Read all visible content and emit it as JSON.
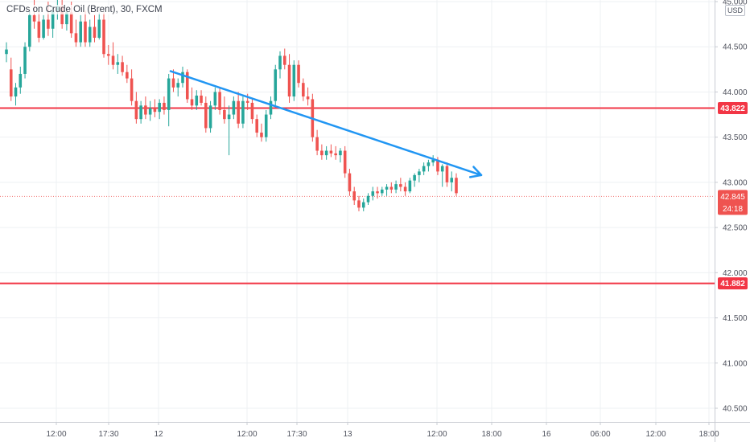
{
  "chart_header": {
    "symbol_title": "CFDs on Crude Oil (Brent), 30, FXCM",
    "currency": "USD"
  },
  "chart_data": {
    "type": "candlestick",
    "y_axis": {
      "min": 40.4,
      "max": 45.0,
      "tick_labels": [
        "45.000",
        "44.500",
        "44.000",
        "43.500",
        "43.000",
        "42.500",
        "42.000",
        "41.500",
        "41.000",
        "40.500"
      ]
    },
    "x_axis": {
      "tick_labels": [
        "12:00",
        "17:30",
        "12",
        "12:00",
        "17:30",
        "13",
        "12:00",
        "18:00",
        "16",
        "06:00",
        "12:00",
        "18:00"
      ]
    },
    "horizontal_levels": [
      {
        "price": 43.822,
        "label": "43.822",
        "color": "#f23645"
      },
      {
        "price": 41.882,
        "label": "41.882",
        "color": "#f23645"
      }
    ],
    "last_price": {
      "price": 42.845,
      "label": "42.845",
      "countdown": "24:18",
      "color": "#ef5350"
    },
    "trend_line": {
      "start_price": 44.23,
      "end_price": 43.08,
      "color": "#2196f3",
      "has_arrow": true
    },
    "candles": [
      {
        "o": 44.42,
        "h": 44.55,
        "l": 44.33,
        "c": 44.47
      },
      {
        "o": 44.25,
        "h": 44.38,
        "l": 43.9,
        "c": 43.95
      },
      {
        "o": 43.95,
        "h": 44.1,
        "l": 43.85,
        "c": 44.05
      },
      {
        "o": 44.05,
        "h": 44.28,
        "l": 43.98,
        "c": 44.2
      },
      {
        "o": 44.2,
        "h": 44.55,
        "l": 44.15,
        "c": 44.5
      },
      {
        "o": 44.5,
        "h": 44.9,
        "l": 44.45,
        "c": 44.85
      },
      {
        "o": 44.85,
        "h": 45.05,
        "l": 44.7,
        "c": 44.78
      },
      {
        "o": 44.78,
        "h": 44.9,
        "l": 44.55,
        "c": 44.6
      },
      {
        "o": 44.6,
        "h": 44.85,
        "l": 44.58,
        "c": 44.8
      },
      {
        "o": 44.8,
        "h": 45.0,
        "l": 44.62,
        "c": 44.7
      },
      {
        "o": 44.7,
        "h": 44.95,
        "l": 44.6,
        "c": 44.9
      },
      {
        "o": 44.9,
        "h": 45.02,
        "l": 44.8,
        "c": 44.95
      },
      {
        "o": 44.95,
        "h": 45.05,
        "l": 44.7,
        "c": 44.75
      },
      {
        "o": 44.75,
        "h": 44.92,
        "l": 44.68,
        "c": 44.88
      },
      {
        "o": 44.88,
        "h": 45.0,
        "l": 44.6,
        "c": 44.65
      },
      {
        "o": 44.65,
        "h": 44.8,
        "l": 44.5,
        "c": 44.55
      },
      {
        "o": 44.55,
        "h": 44.85,
        "l": 44.5,
        "c": 44.78
      },
      {
        "o": 44.78,
        "h": 44.9,
        "l": 44.5,
        "c": 44.55
      },
      {
        "o": 44.55,
        "h": 44.8,
        "l": 44.5,
        "c": 44.72
      },
      {
        "o": 44.72,
        "h": 44.85,
        "l": 44.55,
        "c": 44.6
      },
      {
        "o": 44.6,
        "h": 44.88,
        "l": 44.58,
        "c": 44.8
      },
      {
        "o": 44.8,
        "h": 44.88,
        "l": 44.38,
        "c": 44.42
      },
      {
        "o": 44.42,
        "h": 44.52,
        "l": 44.3,
        "c": 44.4
      },
      {
        "o": 44.4,
        "h": 44.55,
        "l": 44.25,
        "c": 44.3
      },
      {
        "o": 44.3,
        "h": 44.42,
        "l": 44.2,
        "c": 44.33
      },
      {
        "o": 44.33,
        "h": 44.4,
        "l": 44.18,
        "c": 44.22
      },
      {
        "o": 44.22,
        "h": 44.3,
        "l": 44.1,
        "c": 44.15
      },
      {
        "o": 44.15,
        "h": 44.25,
        "l": 43.85,
        "c": 43.9
      },
      {
        "o": 43.9,
        "h": 44.0,
        "l": 43.65,
        "c": 43.7
      },
      {
        "o": 43.7,
        "h": 43.9,
        "l": 43.65,
        "c": 43.85
      },
      {
        "o": 43.85,
        "h": 43.95,
        "l": 43.7,
        "c": 43.75
      },
      {
        "o": 43.75,
        "h": 43.9,
        "l": 43.68,
        "c": 43.82
      },
      {
        "o": 43.82,
        "h": 43.92,
        "l": 43.72,
        "c": 43.78
      },
      {
        "o": 43.78,
        "h": 43.92,
        "l": 43.7,
        "c": 43.88
      },
      {
        "o": 43.88,
        "h": 43.95,
        "l": 43.75,
        "c": 43.8
      },
      {
        "o": 43.8,
        "h": 44.2,
        "l": 43.62,
        "c": 44.15
      },
      {
        "o": 44.15,
        "h": 44.25,
        "l": 44.0,
        "c": 44.05
      },
      {
        "o": 44.05,
        "h": 44.15,
        "l": 43.95,
        "c": 44.1
      },
      {
        "o": 44.1,
        "h": 44.28,
        "l": 44.05,
        "c": 44.22
      },
      {
        "o": 44.22,
        "h": 44.25,
        "l": 43.88,
        "c": 43.92
      },
      {
        "o": 43.92,
        "h": 44.05,
        "l": 43.8,
        "c": 43.85
      },
      {
        "o": 43.85,
        "h": 44.02,
        "l": 43.8,
        "c": 43.96
      },
      {
        "o": 43.96,
        "h": 44.02,
        "l": 43.85,
        "c": 43.88
      },
      {
        "o": 43.88,
        "h": 43.95,
        "l": 43.55,
        "c": 43.6
      },
      {
        "o": 43.6,
        "h": 43.9,
        "l": 43.55,
        "c": 43.85
      },
      {
        "o": 43.85,
        "h": 44.05,
        "l": 43.8,
        "c": 44.0
      },
      {
        "o": 44.0,
        "h": 44.05,
        "l": 43.75,
        "c": 43.8
      },
      {
        "o": 43.8,
        "h": 43.95,
        "l": 43.65,
        "c": 43.7
      },
      {
        "o": 43.7,
        "h": 43.85,
        "l": 43.3,
        "c": 43.75
      },
      {
        "o": 43.75,
        "h": 43.95,
        "l": 43.7,
        "c": 43.9
      },
      {
        "o": 43.9,
        "h": 44.0,
        "l": 43.6,
        "c": 43.65
      },
      {
        "o": 43.65,
        "h": 43.95,
        "l": 43.6,
        "c": 43.9
      },
      {
        "o": 43.9,
        "h": 43.98,
        "l": 43.8,
        "c": 43.88
      },
      {
        "o": 43.88,
        "h": 43.92,
        "l": 43.65,
        "c": 43.7
      },
      {
        "o": 43.7,
        "h": 43.75,
        "l": 43.5,
        "c": 43.55
      },
      {
        "o": 43.55,
        "h": 43.65,
        "l": 43.45,
        "c": 43.5
      },
      {
        "o": 43.5,
        "h": 43.8,
        "l": 43.45,
        "c": 43.75
      },
      {
        "o": 43.75,
        "h": 43.95,
        "l": 43.7,
        "c": 43.9
      },
      {
        "o": 43.9,
        "h": 44.3,
        "l": 43.85,
        "c": 44.25
      },
      {
        "o": 44.25,
        "h": 44.45,
        "l": 44.15,
        "c": 44.4
      },
      {
        "o": 44.4,
        "h": 44.48,
        "l": 44.25,
        "c": 44.3
      },
      {
        "o": 44.3,
        "h": 44.42,
        "l": 43.88,
        "c": 43.95
      },
      {
        "o": 43.95,
        "h": 44.35,
        "l": 43.9,
        "c": 44.3
      },
      {
        "o": 44.3,
        "h": 44.35,
        "l": 44.05,
        "c": 44.1
      },
      {
        "o": 44.1,
        "h": 44.15,
        "l": 43.9,
        "c": 43.95
      },
      {
        "o": 43.95,
        "h": 44.05,
        "l": 43.85,
        "c": 43.92
      },
      {
        "o": 43.92,
        "h": 43.98,
        "l": 43.45,
        "c": 43.5
      },
      {
        "o": 43.5,
        "h": 43.58,
        "l": 43.3,
        "c": 43.35
      },
      {
        "o": 43.35,
        "h": 43.42,
        "l": 43.25,
        "c": 43.3
      },
      {
        "o": 43.3,
        "h": 43.4,
        "l": 43.25,
        "c": 43.35
      },
      {
        "o": 43.35,
        "h": 43.42,
        "l": 43.28,
        "c": 43.32
      },
      {
        "o": 43.32,
        "h": 43.4,
        "l": 43.25,
        "c": 43.3
      },
      {
        "o": 43.3,
        "h": 43.38,
        "l": 43.22,
        "c": 43.35
      },
      {
        "o": 43.35,
        "h": 43.4,
        "l": 43.05,
        "c": 43.1
      },
      {
        "o": 43.1,
        "h": 43.15,
        "l": 42.85,
        "c": 42.9
      },
      {
        "o": 42.9,
        "h": 42.95,
        "l": 42.75,
        "c": 42.8
      },
      {
        "o": 42.8,
        "h": 42.85,
        "l": 42.68,
        "c": 42.72
      },
      {
        "o": 42.72,
        "h": 42.82,
        "l": 42.68,
        "c": 42.78
      },
      {
        "o": 42.78,
        "h": 42.88,
        "l": 42.75,
        "c": 42.85
      },
      {
        "o": 42.85,
        "h": 42.95,
        "l": 42.8,
        "c": 42.9
      },
      {
        "o": 42.9,
        "h": 42.95,
        "l": 42.82,
        "c": 42.88
      },
      {
        "o": 42.88,
        "h": 42.95,
        "l": 42.85,
        "c": 42.92
      },
      {
        "o": 42.92,
        "h": 42.98,
        "l": 42.85,
        "c": 42.95
      },
      {
        "o": 42.95,
        "h": 43.0,
        "l": 42.88,
        "c": 42.92
      },
      {
        "o": 42.92,
        "h": 43.02,
        "l": 42.88,
        "c": 42.98
      },
      {
        "o": 42.98,
        "h": 43.05,
        "l": 42.9,
        "c": 42.95
      },
      {
        "o": 42.95,
        "h": 43.0,
        "l": 42.85,
        "c": 42.9
      },
      {
        "o": 42.9,
        "h": 43.05,
        "l": 42.88,
        "c": 43.02
      },
      {
        "o": 43.02,
        "h": 43.1,
        "l": 42.95,
        "c": 43.08
      },
      {
        "o": 43.08,
        "h": 43.15,
        "l": 43.0,
        "c": 43.12
      },
      {
        "o": 43.12,
        "h": 43.22,
        "l": 43.08,
        "c": 43.18
      },
      {
        "o": 43.18,
        "h": 43.25,
        "l": 43.12,
        "c": 43.22
      },
      {
        "o": 43.22,
        "h": 43.3,
        "l": 43.18,
        "c": 43.25
      },
      {
        "o": 43.25,
        "h": 43.28,
        "l": 43.08,
        "c": 43.12
      },
      {
        "o": 43.12,
        "h": 43.2,
        "l": 42.95,
        "c": 43.18
      },
      {
        "o": 43.18,
        "h": 43.22,
        "l": 42.95,
        "c": 43.0
      },
      {
        "o": 43.0,
        "h": 43.12,
        "l": 42.9,
        "c": 43.05
      },
      {
        "o": 43.05,
        "h": 43.1,
        "l": 42.85,
        "c": 42.88
      }
    ]
  }
}
